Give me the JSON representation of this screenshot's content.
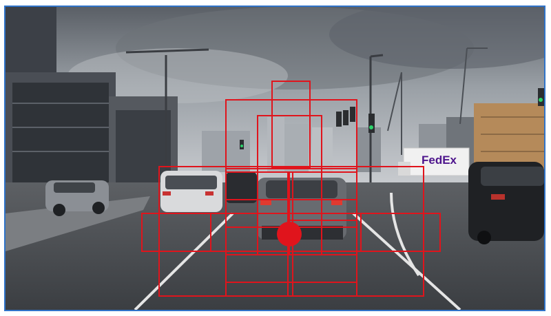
{
  "image": {
    "frame_color": "#2f73c9",
    "overlay_color": "#e0141c",
    "scene_text": {
      "truck_logo": "FedEx"
    },
    "annotations": {
      "box_count": 23,
      "center_marker": "red-dot"
    }
  }
}
